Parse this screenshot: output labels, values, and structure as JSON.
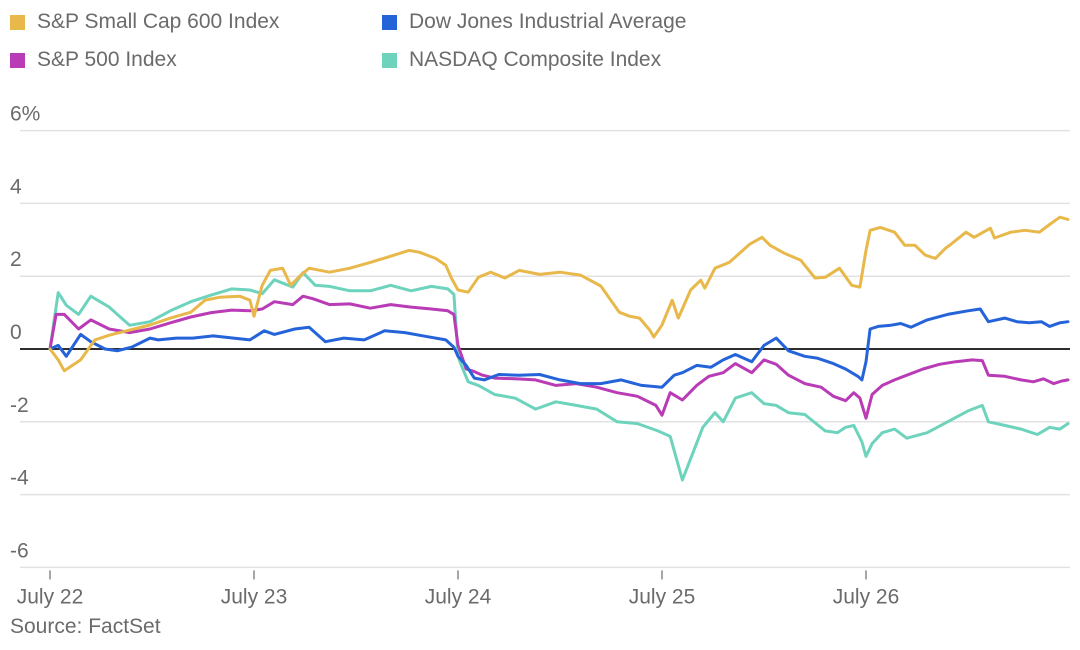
{
  "chart_data": {
    "type": "line",
    "title": "",
    "xlabel": "",
    "ylabel": "",
    "y_unit_suffix_on_top_tick": "%",
    "ylim": [
      -6,
      6
    ],
    "yticks": [
      6,
      4,
      2,
      0,
      -2,
      -4,
      -6
    ],
    "ytick_labels": [
      "6%",
      "4",
      "2",
      "0",
      "-2",
      "-4",
      "-6"
    ],
    "xlim": [
      0,
      4.99
    ],
    "xticks": [
      0,
      1,
      2,
      3,
      4
    ],
    "xtick_labels": [
      "July 22",
      "July 23",
      "July 24",
      "July 25",
      "July 26"
    ],
    "grid": true,
    "zero_line": true,
    "legend_position": "top",
    "source": "Source: FactSet",
    "series": [
      {
        "name": "S&P Small Cap 600 Index",
        "color": "#e8b84a",
        "x": [
          0,
          0.04,
          0.07,
          0.15,
          0.22,
          0.29,
          0.39,
          0.49,
          0.59,
          0.69,
          0.76,
          0.83,
          0.93,
          0.98,
          1.0,
          1.04,
          1.08,
          1.14,
          1.18,
          1.23,
          1.27,
          1.37,
          1.47,
          1.57,
          1.67,
          1.76,
          1.81,
          1.89,
          1.94,
          1.97,
          2.0,
          2.05,
          2.1,
          2.16,
          2.23,
          2.3,
          2.4,
          2.5,
          2.6,
          2.7,
          2.79,
          2.84,
          2.89,
          2.94,
          2.96,
          3.0,
          3.05,
          3.08,
          3.14,
          3.19,
          3.21,
          3.26,
          3.33,
          3.43,
          3.49,
          3.53,
          3.6,
          3.68,
          3.75,
          3.8,
          3.87,
          3.93,
          3.97,
          4.0,
          4.02,
          4.07,
          4.14,
          4.19,
          4.24,
          4.29,
          4.34,
          4.39,
          4.41,
          4.49,
          4.53,
          4.61,
          4.63,
          4.71,
          4.78,
          4.85,
          4.9,
          4.95,
          4.99
        ],
        "values": [
          0,
          -0.3,
          -0.6,
          -0.3,
          0.25,
          0.38,
          0.52,
          0.66,
          0.85,
          1.01,
          1.34,
          1.42,
          1.45,
          1.34,
          0.9,
          1.75,
          2.16,
          2.22,
          1.75,
          2.03,
          2.22,
          2.11,
          2.22,
          2.38,
          2.55,
          2.71,
          2.66,
          2.49,
          2.3,
          1.92,
          1.62,
          1.56,
          1.97,
          2.11,
          1.95,
          2.16,
          2.05,
          2.11,
          2.03,
          1.73,
          1.01,
          0.9,
          0.85,
          0.52,
          0.33,
          0.66,
          1.34,
          0.85,
          1.62,
          1.89,
          1.67,
          2.22,
          2.38,
          2.88,
          3.07,
          2.85,
          2.63,
          2.44,
          1.95,
          1.97,
          2.22,
          1.75,
          1.7,
          2.71,
          3.26,
          3.34,
          3.21,
          2.85,
          2.85,
          2.58,
          2.49,
          2.77,
          2.85,
          3.21,
          3.07,
          3.32,
          3.05,
          3.21,
          3.26,
          3.21,
          3.42,
          3.62,
          3.56
        ]
      },
      {
        "name": "Dow Jones Industrial Average",
        "color": "#2563d9",
        "x": [
          0,
          0.04,
          0.08,
          0.15,
          0.2,
          0.27,
          0.33,
          0.4,
          0.49,
          0.53,
          0.62,
          0.7,
          0.8,
          0.9,
          0.98,
          1.05,
          1.1,
          1.2,
          1.27,
          1.35,
          1.44,
          1.54,
          1.64,
          1.74,
          1.84,
          1.94,
          1.98,
          2.0,
          2.04,
          2.08,
          2.13,
          2.2,
          2.3,
          2.4,
          2.5,
          2.6,
          2.7,
          2.8,
          2.9,
          3.0,
          3.06,
          3.1,
          3.17,
          3.24,
          3.3,
          3.36,
          3.44,
          3.5,
          3.56,
          3.62,
          3.7,
          3.76,
          3.84,
          3.9,
          3.96,
          3.98,
          4.0,
          4.02,
          4.06,
          4.12,
          4.17,
          4.22,
          4.3,
          4.4,
          4.5,
          4.56,
          4.6,
          4.68,
          4.74,
          4.8,
          4.86,
          4.9,
          4.95,
          4.99
        ],
        "values": [
          0,
          0.1,
          -0.2,
          0.4,
          0.2,
          0.0,
          -0.05,
          0.05,
          0.3,
          0.25,
          0.3,
          0.3,
          0.36,
          0.3,
          0.25,
          0.5,
          0.4,
          0.55,
          0.6,
          0.2,
          0.3,
          0.25,
          0.5,
          0.45,
          0.35,
          0.25,
          0.05,
          -0.2,
          -0.45,
          -0.8,
          -0.85,
          -0.7,
          -0.72,
          -0.7,
          -0.85,
          -0.95,
          -0.95,
          -0.85,
          -1.0,
          -1.05,
          -0.72,
          -0.65,
          -0.45,
          -0.5,
          -0.3,
          -0.15,
          -0.35,
          0.1,
          0.3,
          -0.05,
          -0.2,
          -0.25,
          -0.4,
          -0.55,
          -0.75,
          -0.85,
          -0.35,
          0.55,
          0.62,
          0.65,
          0.7,
          0.6,
          0.8,
          0.95,
          1.05,
          1.1,
          0.75,
          0.85,
          0.75,
          0.72,
          0.75,
          0.62,
          0.72,
          0.75
        ]
      },
      {
        "name": "S&P 500 Index",
        "color": "#b93bb5",
        "x": [
          0,
          0.03,
          0.07,
          0.14,
          0.2,
          0.29,
          0.39,
          0.49,
          0.59,
          0.69,
          0.79,
          0.89,
          0.98,
          1.04,
          1.1,
          1.19,
          1.24,
          1.29,
          1.37,
          1.47,
          1.57,
          1.67,
          1.77,
          1.87,
          1.95,
          1.98,
          2.0,
          2.04,
          2.08,
          2.12,
          2.18,
          2.28,
          2.38,
          2.48,
          2.58,
          2.68,
          2.78,
          2.88,
          2.97,
          3.0,
          3.04,
          3.1,
          3.17,
          3.23,
          3.3,
          3.36,
          3.44,
          3.5,
          3.56,
          3.62,
          3.7,
          3.78,
          3.84,
          3.9,
          3.94,
          3.97,
          4.0,
          4.03,
          4.08,
          4.14,
          4.2,
          4.28,
          4.36,
          4.44,
          4.52,
          4.57,
          4.6,
          4.68,
          4.76,
          4.82,
          4.87,
          4.92,
          4.96,
          4.99
        ],
        "values": [
          0,
          0.95,
          0.95,
          0.55,
          0.8,
          0.55,
          0.45,
          0.55,
          0.72,
          0.88,
          1.0,
          1.07,
          1.05,
          1.1,
          1.3,
          1.22,
          1.45,
          1.38,
          1.22,
          1.24,
          1.12,
          1.22,
          1.15,
          1.1,
          1.05,
          0.95,
          0.1,
          -0.55,
          -0.62,
          -0.72,
          -0.8,
          -0.82,
          -0.85,
          -1.0,
          -0.95,
          -1.05,
          -1.2,
          -1.3,
          -1.55,
          -1.82,
          -1.2,
          -1.4,
          -1.0,
          -0.75,
          -0.65,
          -0.4,
          -0.65,
          -0.3,
          -0.42,
          -0.72,
          -0.95,
          -1.05,
          -1.3,
          -1.42,
          -1.2,
          -1.35,
          -1.9,
          -1.25,
          -1.0,
          -0.85,
          -0.72,
          -0.55,
          -0.42,
          -0.35,
          -0.3,
          -0.32,
          -0.72,
          -0.75,
          -0.85,
          -0.9,
          -0.82,
          -0.95,
          -0.88,
          -0.85
        ]
      },
      {
        "name": "NASDAQ Composite Index",
        "color": "#6dd3bd",
        "x": [
          0,
          0.04,
          0.08,
          0.14,
          0.2,
          0.29,
          0.39,
          0.49,
          0.59,
          0.69,
          0.79,
          0.89,
          0.98,
          1.04,
          1.1,
          1.19,
          1.24,
          1.3,
          1.37,
          1.47,
          1.57,
          1.67,
          1.77,
          1.87,
          1.95,
          1.98,
          2.0,
          2.02,
          2.05,
          2.1,
          2.18,
          2.28,
          2.38,
          2.48,
          2.58,
          2.68,
          2.78,
          2.88,
          2.98,
          3.04,
          3.1,
          3.2,
          3.26,
          3.3,
          3.36,
          3.44,
          3.5,
          3.56,
          3.62,
          3.7,
          3.8,
          3.86,
          3.9,
          3.94,
          3.98,
          4.0,
          4.03,
          4.08,
          4.14,
          4.2,
          4.3,
          4.4,
          4.5,
          4.57,
          4.6,
          4.68,
          4.76,
          4.84,
          4.9,
          4.95,
          4.99
        ],
        "values": [
          0,
          1.55,
          1.2,
          0.95,
          1.45,
          1.15,
          0.65,
          0.75,
          1.05,
          1.3,
          1.48,
          1.65,
          1.62,
          1.52,
          1.9,
          1.7,
          2.1,
          1.75,
          1.72,
          1.6,
          1.6,
          1.75,
          1.6,
          1.72,
          1.65,
          1.5,
          -0.2,
          -0.5,
          -0.9,
          -1.0,
          -1.25,
          -1.35,
          -1.65,
          -1.45,
          -1.55,
          -1.65,
          -2.0,
          -2.05,
          -2.25,
          -2.4,
          -3.6,
          -2.15,
          -1.75,
          -2.0,
          -1.35,
          -1.2,
          -1.5,
          -1.55,
          -1.75,
          -1.8,
          -2.25,
          -2.3,
          -2.15,
          -2.1,
          -2.55,
          -2.95,
          -2.6,
          -2.3,
          -2.2,
          -2.45,
          -2.3,
          -2.0,
          -1.7,
          -1.55,
          -2.0,
          -2.1,
          -2.2,
          -2.35,
          -2.15,
          -2.2,
          -2.05
        ]
      }
    ]
  },
  "legend": {
    "items": [
      {
        "label": "S&P Small Cap 600 Index",
        "color": "#e8b84a"
      },
      {
        "label": "Dow Jones Industrial Average",
        "color": "#2563d9"
      },
      {
        "label": "S&P 500 Index",
        "color": "#b93bb5"
      },
      {
        "label": "NASDAQ Composite Index",
        "color": "#6dd3bd"
      }
    ]
  },
  "footer": {
    "source": "Source: FactSet"
  }
}
